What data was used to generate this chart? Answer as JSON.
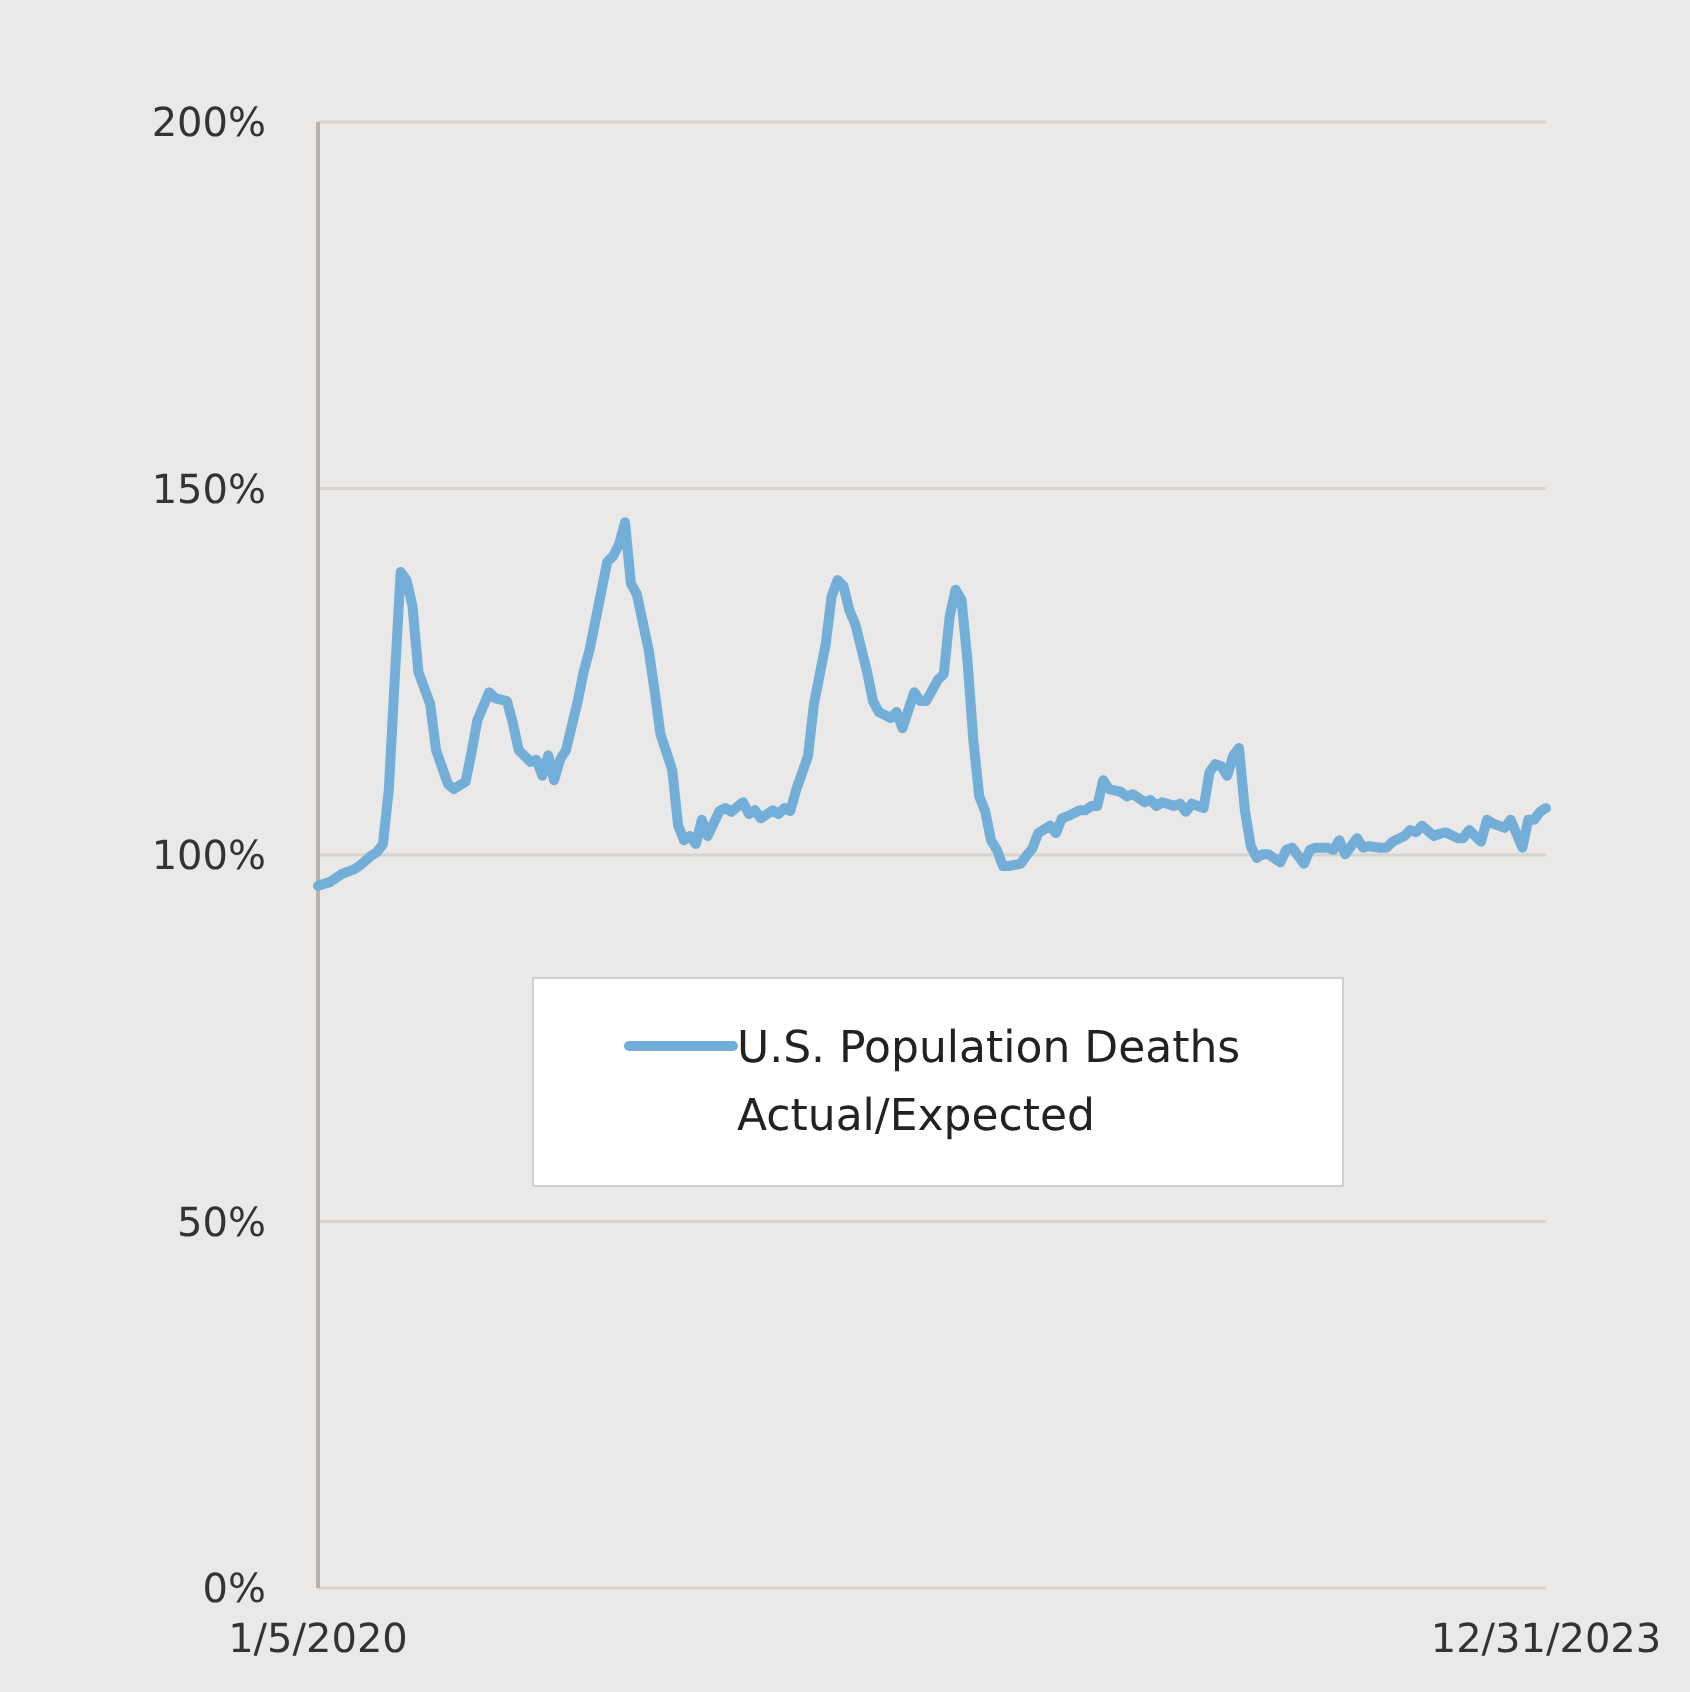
{
  "chart_data": {
    "type": "line",
    "x": [
      "2020-01-05",
      "2020-01-19",
      "2020-02-02",
      "2020-02-16",
      "2020-02-23",
      "2020-03-08",
      "2020-03-15",
      "2020-03-22",
      "2020-03-29",
      "2020-04-05",
      "2020-04-12",
      "2020-04-19",
      "2020-04-26",
      "2020-05-03",
      "2020-05-17",
      "2020-05-24",
      "2020-06-07",
      "2020-06-14",
      "2020-06-28",
      "2020-07-05",
      "2020-07-12",
      "2020-07-26",
      "2020-08-02",
      "2020-08-16",
      "2020-08-23",
      "2020-08-30",
      "2020-09-13",
      "2020-09-20",
      "2020-09-27",
      "2020-10-04",
      "2020-10-11",
      "2020-10-18",
      "2020-10-25",
      "2020-11-08",
      "2020-11-15",
      "2020-11-22",
      "2020-11-29",
      "2020-12-13",
      "2020-12-20",
      "2020-12-27",
      "2021-01-03",
      "2021-01-10",
      "2021-01-17",
      "2021-01-31",
      "2021-02-07",
      "2021-02-14",
      "2021-02-28",
      "2021-03-07",
      "2021-03-14",
      "2021-03-21",
      "2021-03-28",
      "2021-04-04",
      "2021-04-11",
      "2021-04-25",
      "2021-05-02",
      "2021-05-09",
      "2021-05-23",
      "2021-05-30",
      "2021-06-06",
      "2021-06-13",
      "2021-06-27",
      "2021-07-04",
      "2021-07-11",
      "2021-07-18",
      "2021-07-25",
      "2021-08-08",
      "2021-08-15",
      "2021-08-29",
      "2021-09-05",
      "2021-09-12",
      "2021-09-19",
      "2021-09-26",
      "2021-10-03",
      "2021-10-17",
      "2021-10-24",
      "2021-10-31",
      "2021-11-14",
      "2021-11-21",
      "2021-11-28",
      "2021-12-05",
      "2021-12-12",
      "2021-12-19",
      "2021-12-26",
      "2022-01-09",
      "2022-01-16",
      "2022-01-23",
      "2022-01-30",
      "2022-02-06",
      "2022-02-13",
      "2022-02-20",
      "2022-02-27",
      "2022-03-06",
      "2022-03-13",
      "2022-03-20",
      "2022-03-27",
      "2022-04-03",
      "2022-04-17",
      "2022-04-24",
      "2022-05-01",
      "2022-05-08",
      "2022-05-22",
      "2022-05-29",
      "2022-06-05",
      "2022-06-12",
      "2022-06-26",
      "2022-07-03",
      "2022-07-10",
      "2022-07-17",
      "2022-07-24",
      "2022-07-31",
      "2022-08-14",
      "2022-08-21",
      "2022-08-28",
      "2022-09-11",
      "2022-09-18",
      "2022-09-25",
      "2022-10-02",
      "2022-10-16",
      "2022-10-23",
      "2022-10-30",
      "2022-11-06",
      "2022-11-20",
      "2022-11-27",
      "2022-12-04",
      "2022-12-11",
      "2022-12-18",
      "2022-12-25",
      "2023-01-01",
      "2023-01-08",
      "2023-01-15",
      "2023-01-22",
      "2023-01-29",
      "2023-02-05",
      "2023-02-19",
      "2023-02-26",
      "2023-03-05",
      "2023-03-19",
      "2023-03-26",
      "2023-04-02",
      "2023-04-16",
      "2023-04-23",
      "2023-04-30",
      "2023-05-07",
      "2023-05-21",
      "2023-05-28",
      "2023-06-04",
      "2023-06-18",
      "2023-06-25",
      "2023-07-02",
      "2023-07-16",
      "2023-07-23",
      "2023-07-30",
      "2023-08-06",
      "2023-08-20",
      "2023-08-27",
      "2023-09-03",
      "2023-09-17",
      "2023-09-24",
      "2023-10-01",
      "2023-10-15",
      "2023-10-22",
      "2023-10-29",
      "2023-11-12",
      "2023-11-19",
      "2023-12-03",
      "2023-12-10",
      "2023-12-17",
      "2023-12-24",
      "2023-12-31"
    ],
    "series": [
      {
        "name": "U.S. Population Deaths Actual/Expected",
        "color": "#73aed8",
        "values": [
          95.8,
          96.3,
          97.4,
          98,
          98.5,
          99.9,
          100.4,
          101.5,
          109,
          124,
          138.6,
          137.5,
          134,
          125,
          120.6,
          114.3,
          109.7,
          109,
          110,
          114,
          118.4,
          122.2,
          121.4,
          121,
          118,
          114.3,
          112.7,
          113,
          110.8,
          113.6,
          110.2,
          113,
          114.3,
          121,
          125,
          128,
          132,
          140,
          140.8,
          142.4,
          145.4,
          137,
          135.6,
          128,
          122.5,
          116.5,
          111.6,
          104,
          102,
          102.6,
          101.5,
          104.8,
          102.6,
          106,
          106.4,
          105.9,
          107.2,
          105.6,
          106.1,
          105,
          106.1,
          105.6,
          106.4,
          106,
          108.9,
          113.5,
          120.6,
          128.8,
          135.3,
          137.5,
          136.7,
          133.4,
          131.5,
          125,
          121,
          119.5,
          118.7,
          119.5,
          117.3,
          119.8,
          122.2,
          121,
          121,
          123.9,
          124.7,
          132.6,
          136.2,
          134.8,
          126.6,
          115.7,
          108,
          106,
          102,
          100.7,
          98.5,
          98.5,
          98.8,
          99.9,
          100.9,
          103,
          104,
          103,
          105,
          105.3,
          106.1,
          106.1,
          106.7,
          106.7,
          110.2,
          109,
          108.6,
          108,
          108.3,
          107.2,
          107.5,
          106.7,
          107.2,
          106.7,
          107,
          105.9,
          107,
          106.4,
          111.3,
          112.4,
          112.1,
          110.8,
          113.5,
          114.6,
          106.1,
          101.2,
          99.6,
          100.1,
          100.1,
          99,
          100.7,
          101,
          98.8,
          100.7,
          101,
          101,
          100.7,
          102,
          100.1,
          102.3,
          101,
          101.2,
          101,
          101,
          101.8,
          102.6,
          103.4,
          103.1,
          104,
          102.6,
          102.9,
          103.1,
          102.3,
          102.3,
          103.4,
          101.8,
          104.8,
          104.3,
          103.7,
          104.8,
          101,
          104.8,
          104.8,
          105.9,
          106.4
        ]
      }
    ],
    "xlim": [
      "2020-01-05",
      "2023-12-31"
    ],
    "xticks": [
      {
        "value": "2020-01-05",
        "label": "1/5/2020"
      },
      {
        "value": "2023-12-31",
        "label": "12/31/2023"
      }
    ],
    "ylim": [
      0,
      200
    ],
    "yticks": [
      {
        "value": 0,
        "label": "0%"
      },
      {
        "value": 50,
        "label": "50%"
      },
      {
        "value": 100,
        "label": "100%"
      },
      {
        "value": 150,
        "label": "150%"
      },
      {
        "value": 200,
        "label": "200%"
      }
    ],
    "grid": "y",
    "legend": "center",
    "marker": "none",
    "line_style": "solid"
  }
}
